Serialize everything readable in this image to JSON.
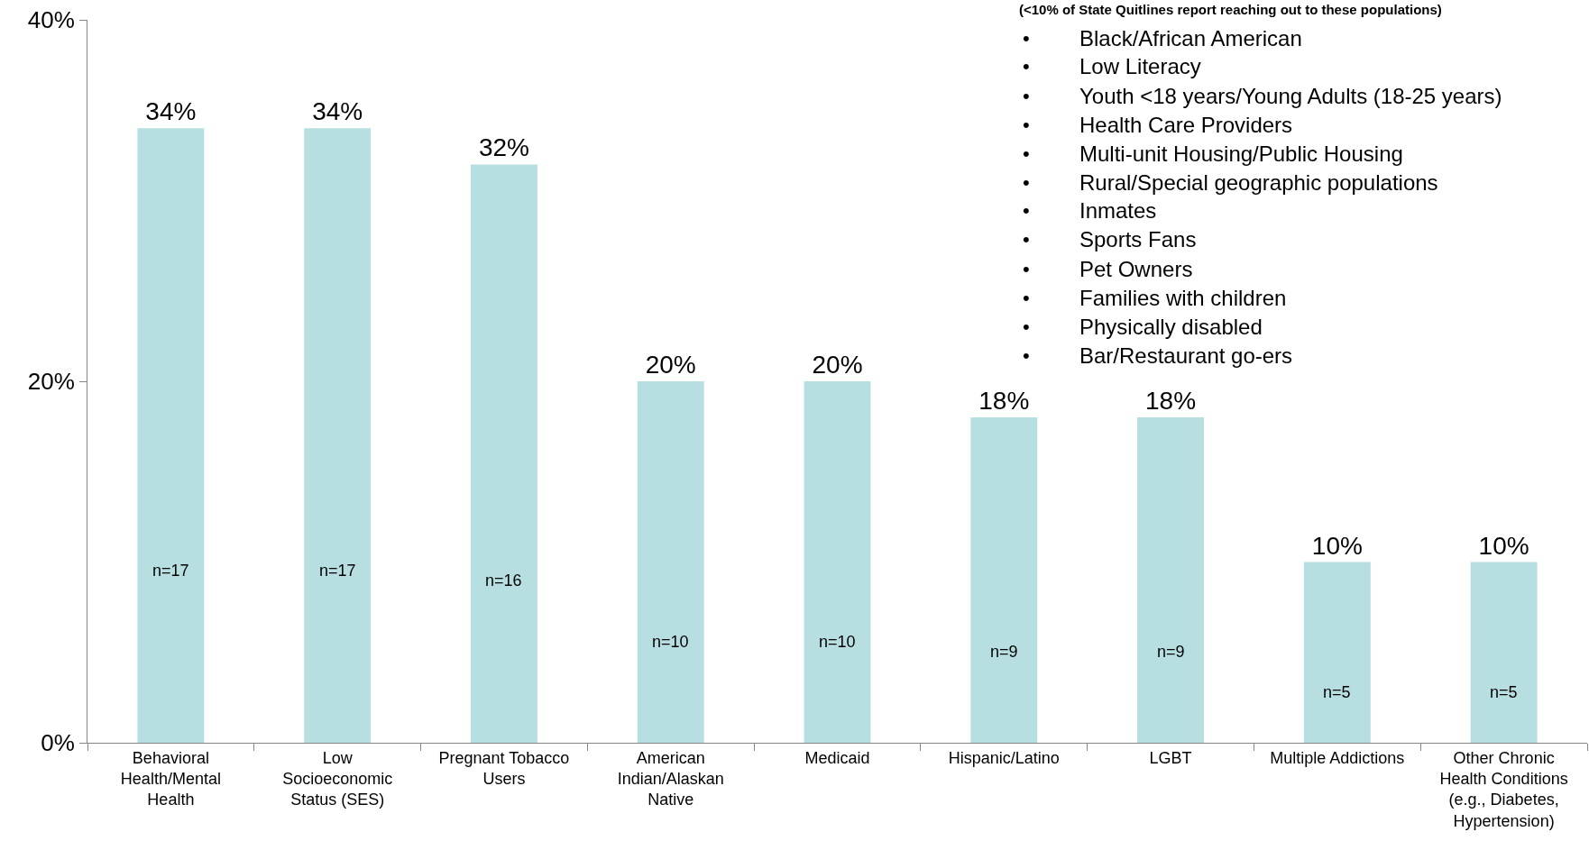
{
  "chart_data": {
    "type": "bar",
    "categories": [
      "Behavioral\nHealth/Mental\nHealth",
      "Low\nSocioeconomic\nStatus (SES)",
      "Pregnant Tobacco\nUsers",
      "American\nIndian/Alaskan\nNative",
      "Medicaid",
      "Hispanic/Latino",
      "LGBT",
      "Multiple Addictions",
      "Other Chronic\nHealth Conditions\n(e.g., Diabetes,\nHypertension)"
    ],
    "values": [
      34,
      34,
      32,
      20,
      20,
      18,
      18,
      10,
      10
    ],
    "value_labels": [
      "34%",
      "34%",
      "32%",
      "20%",
      "20%",
      "18%",
      "18%",
      "10%",
      "10%"
    ],
    "color": "#b7dfe2",
    "ylim": [
      0,
      40
    ],
    "yticks": [
      {
        "value": 0,
        "label": "0%"
      },
      {
        "value": 20,
        "label": "20%"
      },
      {
        "value": 40,
        "label": "40%"
      }
    ],
    "grid": false,
    "annotations": [
      "n=17",
      "n=17",
      "n=16",
      "n=10",
      "n=10",
      "n=9",
      "n=9",
      "n=5",
      "n=5",
      "(<10% of State Quitlines report reaching out to these populations)",
      "• Black/African American",
      "• Low Literacy",
      "• Youth <18 years/Young Adults (18-25 years)",
      "• Health Care Providers",
      "• Multi-unit Housing/Public Housing",
      "• Rural/Special geographic populations",
      "• Inmates",
      "• Sports Fans",
      "• Pet Owners",
      "• Families with children",
      "• Physically disabled",
      "• Bar/Restaurant go-ers"
    ]
  }
}
